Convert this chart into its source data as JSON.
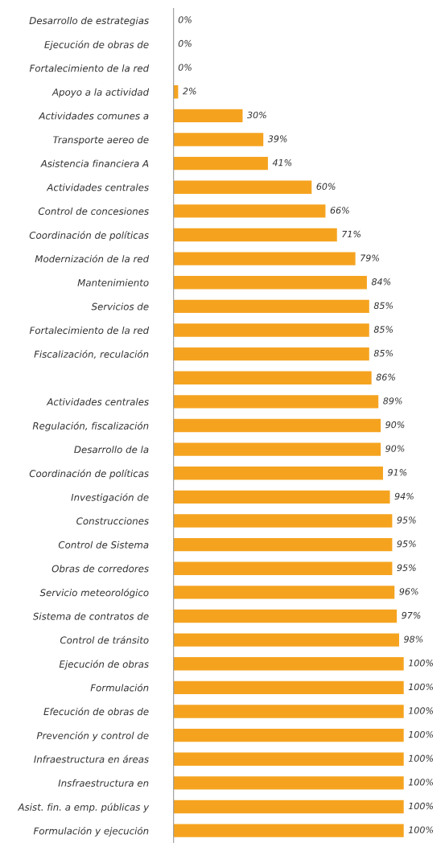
{
  "chart_data": {
    "type": "bar",
    "orientation": "horizontal",
    "color": "#f5a31f",
    "categories": [
      "Desarrollo de estrategias",
      "Ejecución de obras de",
      "Fortalecimiento de la red",
      "Apoyo a la actividad",
      "Actividades comunes a",
      "Transporte aereo de",
      "Asistencia financiera A",
      "Actividades centrales",
      "Control de concesiones",
      "Coordinación de políticas",
      "Modernización de la red",
      "Mantenimiento",
      "Servicios de",
      "Fortalecimiento de la red",
      "Fiscalización, reculación",
      null,
      "Actividades centrales",
      "Regulación, fiscalización",
      "Desarrollo de la",
      "Coordinación de políticas",
      "Investigación de",
      "Construcciones",
      "Control de Sistema",
      "Obras de corredores",
      "Servicio meteorológico",
      "Sistema de contratos de",
      "Control de tránsito",
      "Ejecución de obras",
      "Formulación",
      "Efecución de obras de",
      "Prevención y control de",
      "Infraestructura en áreas",
      "Insfraestructura en",
      "Asist. fin. a emp. públicas y",
      "Formulación y ejecución"
    ],
    "values": [
      0,
      0,
      0,
      2,
      30,
      39,
      41,
      60,
      66,
      71,
      79,
      84,
      85,
      85,
      85,
      86,
      89,
      90,
      90,
      91,
      94,
      95,
      95,
      95,
      96,
      97,
      98,
      100,
      100,
      100,
      100,
      100,
      100,
      100,
      100
    ],
    "value_labels": [
      "0%",
      "0%",
      "0%",
      "2%",
      "30%",
      "39%",
      "41%",
      "60%",
      "66%",
      "71%",
      "79%",
      "84%",
      "85%",
      "85%",
      "85%",
      "86%",
      "89%",
      "90%",
      "90%",
      "91%",
      "94%",
      "95%",
      "95%",
      "95%",
      "96%",
      "97%",
      "98%",
      "100%",
      "100%",
      "100%",
      "100%",
      "100%",
      "100%",
      "100%",
      "100%"
    ],
    "grid": false,
    "legend": false
  }
}
